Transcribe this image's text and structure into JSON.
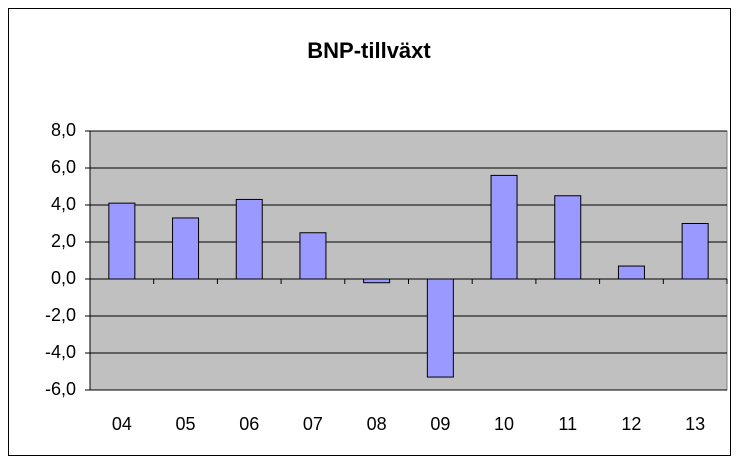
{
  "chart_data": {
    "type": "bar",
    "title": "BNP-tillväxt",
    "categories": [
      "04",
      "05",
      "06",
      "07",
      "08",
      "09",
      "10",
      "11",
      "12",
      "13"
    ],
    "values": [
      4.1,
      3.3,
      4.3,
      2.5,
      -0.2,
      -5.3,
      5.6,
      4.5,
      0.7,
      3.0
    ],
    "color": "#9999ff",
    "ylim": [
      -6,
      8
    ],
    "yticks": [
      {
        "value": -6,
        "label": "-6,0"
      },
      {
        "value": -4,
        "label": "-4,0"
      },
      {
        "value": -2,
        "label": "-2,0"
      },
      {
        "value": 0,
        "label": "0,0"
      },
      {
        "value": 2,
        "label": "2,0"
      },
      {
        "value": 4,
        "label": "4,0"
      },
      {
        "value": 6,
        "label": "6,0"
      },
      {
        "value": 8,
        "label": "8,0"
      }
    ],
    "grid": true
  }
}
